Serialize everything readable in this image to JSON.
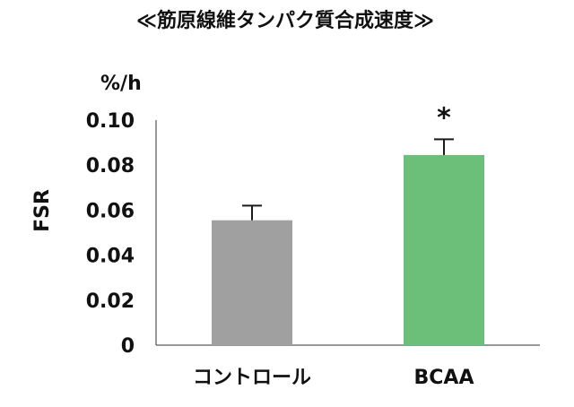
{
  "chart_data": {
    "type": "bar",
    "title": "≪筋原線維タンパク質合成速度≫",
    "unit_label": "%/h",
    "ylabel": "FSR",
    "xlabel": "",
    "categories": [
      "コントロール",
      "BCAA"
    ],
    "values": [
      0.0555,
      0.0845
    ],
    "error_bars": [
      0.0065,
      0.007
    ],
    "bar_colors": [
      "#a0a0a0",
      "#6cbf78"
    ],
    "annotations": [
      {
        "category": "BCAA",
        "text": "*"
      }
    ],
    "ylim": [
      0,
      0.1
    ],
    "yticks": [
      0,
      0.02,
      0.04,
      0.06,
      0.08,
      0.1
    ],
    "yticklabels": [
      "0",
      "0.02",
      "0.04",
      "0.06",
      "0.08",
      "0.10"
    ],
    "grid": false,
    "legend": "none"
  }
}
